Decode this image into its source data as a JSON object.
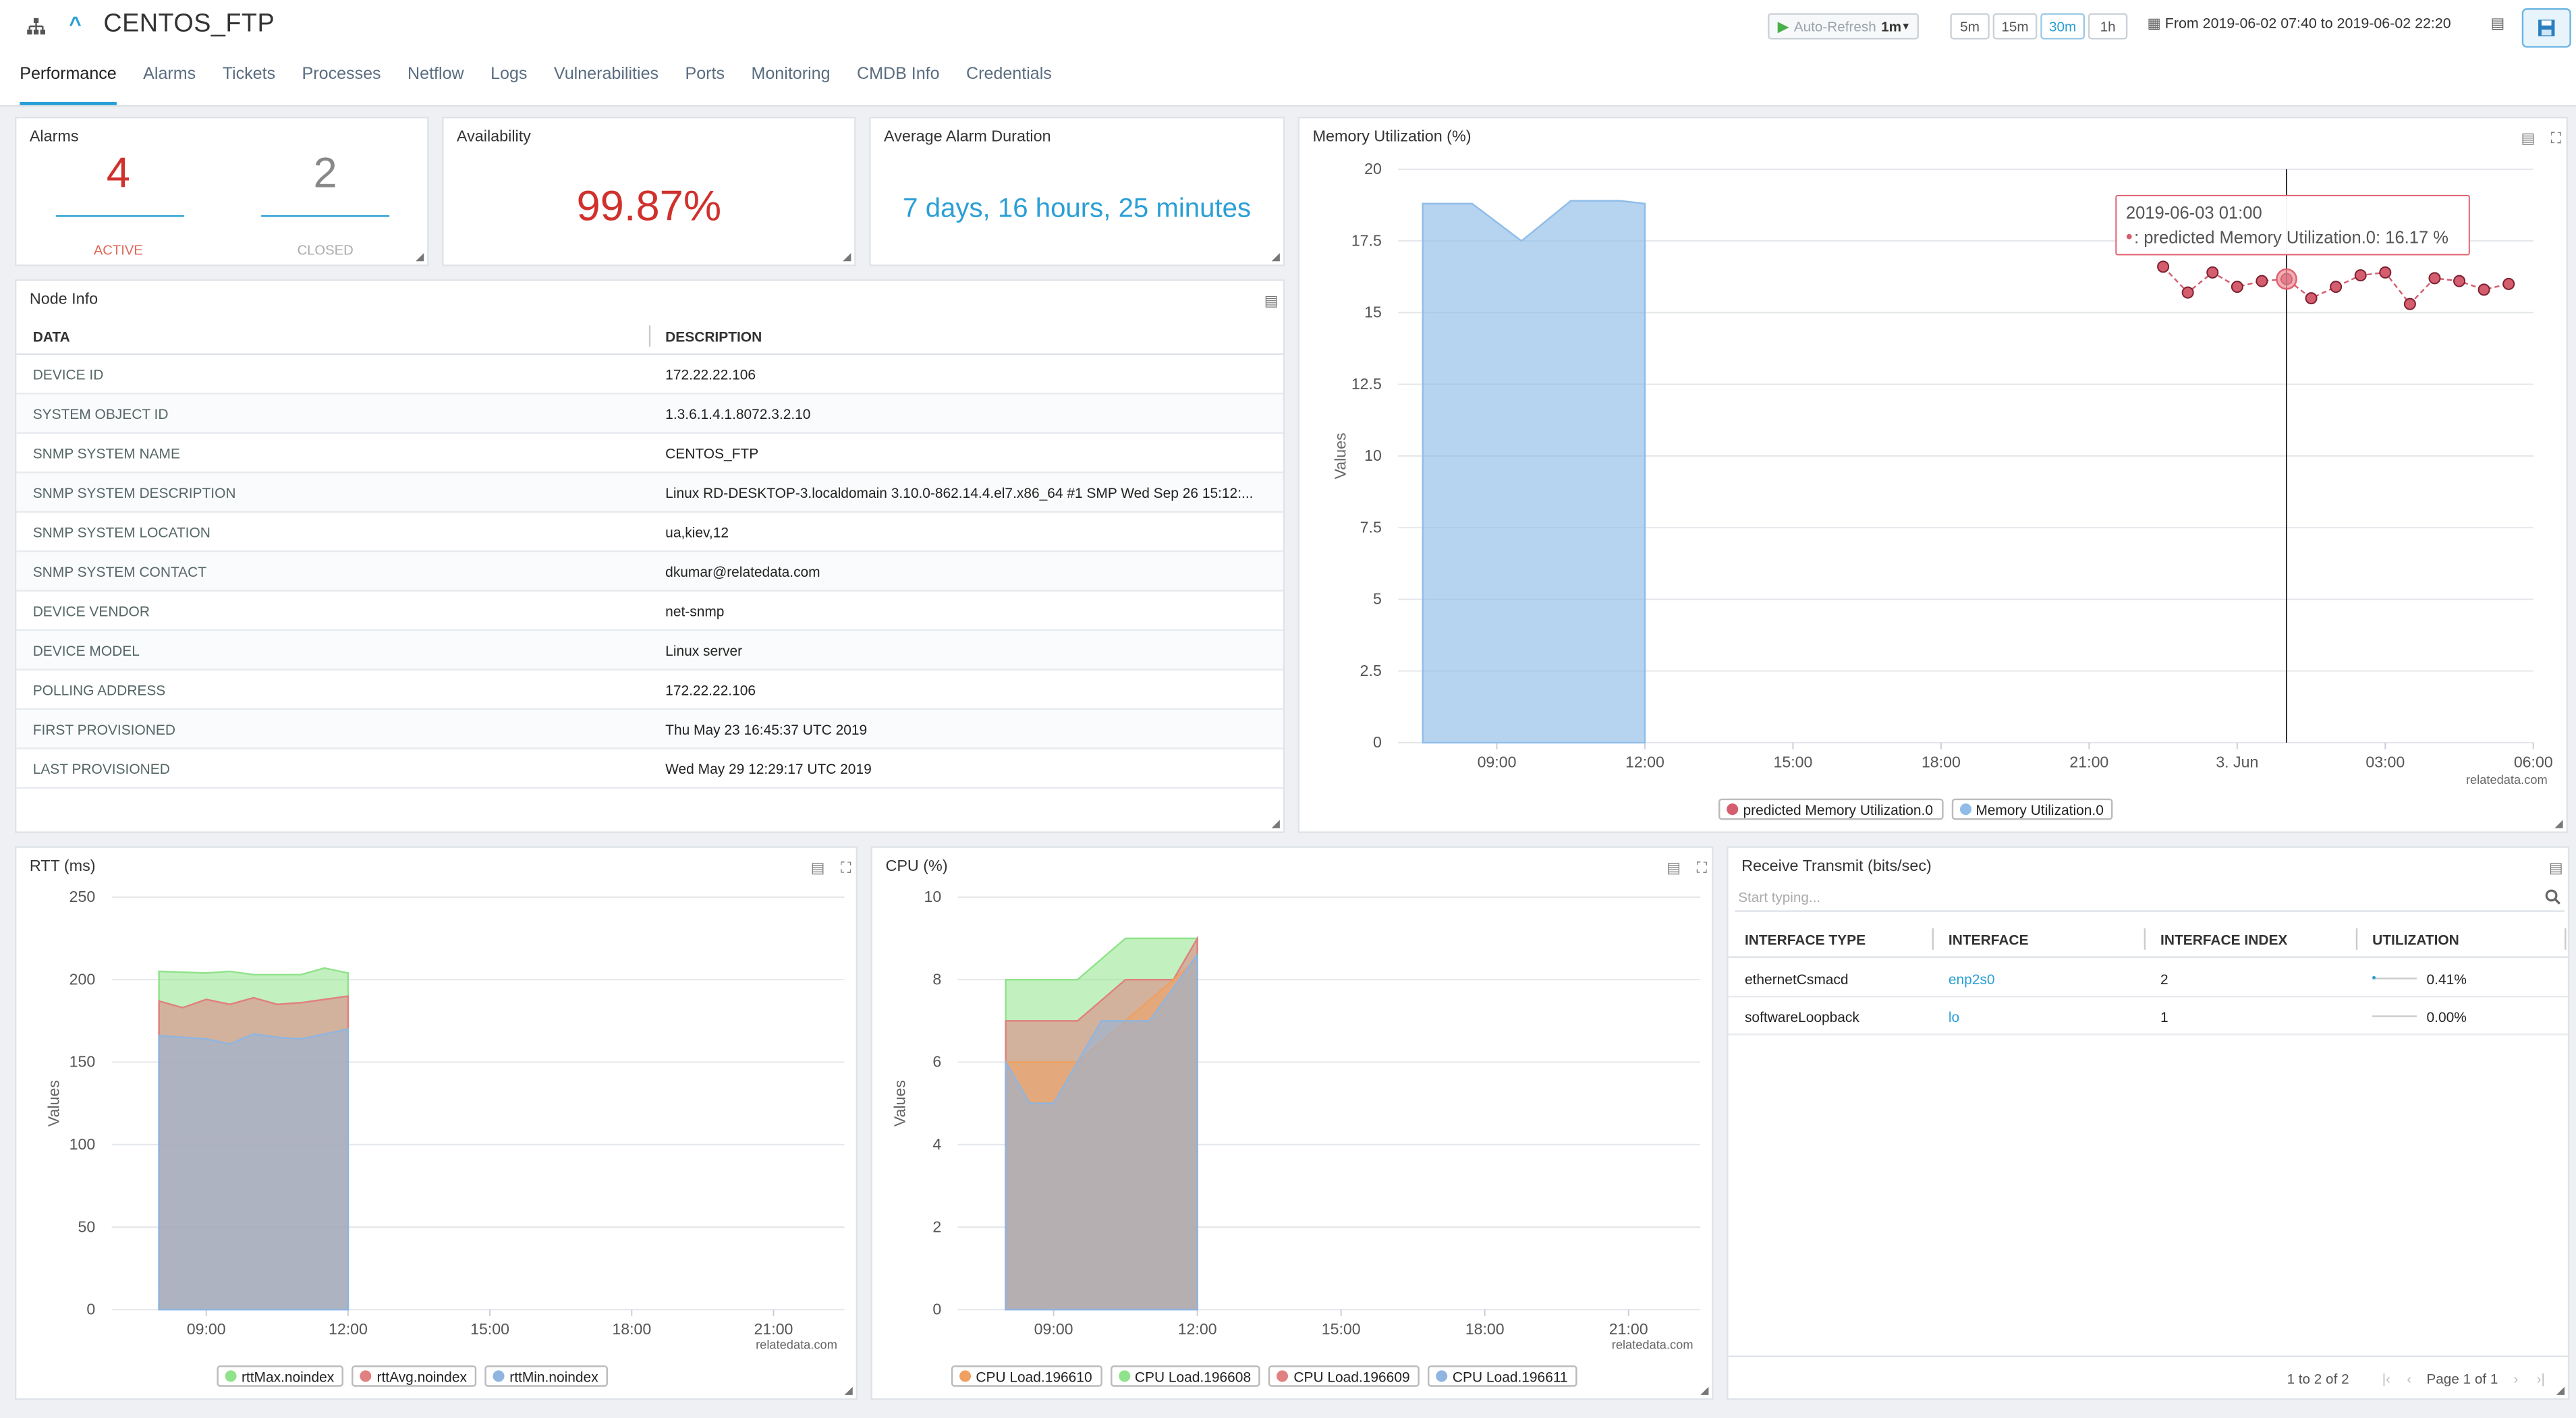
{
  "header": {
    "title": "CENTOS_FTP",
    "tabs": [
      "Performance",
      "Alarms",
      "Tickets",
      "Processes",
      "Netflow",
      "Logs",
      "Vulnerabilities",
      "Ports",
      "Monitoring",
      "CMDB Info",
      "Credentials"
    ],
    "active_tab": "Performance",
    "auto_refresh_label": "Auto-Refresh",
    "auto_refresh_value": "1m",
    "time_buttons": [
      "5m",
      "15m",
      "30m",
      "1h"
    ],
    "selected_time": "30m",
    "date_range": "From 2019-06-02 07:40 to 2019-06-02 22:20"
  },
  "alarms": {
    "title": "Alarms",
    "active_count": "4",
    "active_label": "ACTIVE",
    "closed_count": "2",
    "closed_label": "CLOSED"
  },
  "availability": {
    "title": "Availability",
    "value": "99.87%"
  },
  "avg_duration": {
    "title": "Average Alarm Duration",
    "value": "7 days, 16 hours, 25 minutes"
  },
  "node_info": {
    "title": "Node Info",
    "headers": [
      "DATA",
      "DESCRIPTION"
    ],
    "rows": [
      [
        "DEVICE ID",
        "172.22.22.106"
      ],
      [
        "SYSTEM OBJECT ID",
        "1.3.6.1.4.1.8072.3.2.10"
      ],
      [
        "SNMP SYSTEM NAME",
        "CENTOS_FTP"
      ],
      [
        "SNMP SYSTEM DESCRIPTION",
        "Linux RD-DESKTOP-3.localdomain 3.10.0-862.14.4.el7.x86_64 #1 SMP Wed Sep 26 15:12:..."
      ],
      [
        "SNMP SYSTEM LOCATION",
        "ua,kiev,12"
      ],
      [
        "SNMP SYSTEM CONTACT",
        "dkumar@relatedata.com"
      ],
      [
        "DEVICE VENDOR",
        "net-snmp"
      ],
      [
        "DEVICE MODEL",
        "Linux server"
      ],
      [
        "POLLING ADDRESS",
        "172.22.22.106"
      ],
      [
        "FIRST PROVISIONED",
        "Thu May 23 16:45:37 UTC 2019"
      ],
      [
        "LAST PROVISIONED",
        "Wed May 29 12:29:17 UTC 2019"
      ]
    ]
  },
  "chart_data": [
    {
      "id": "memory",
      "type": "area",
      "title": "Memory Utilization (%)",
      "ylabel": "Values",
      "ylim": [
        0,
        20
      ],
      "yticks": [
        "0",
        "2.5",
        "5",
        "7.5",
        "10",
        "12.5",
        "15",
        "17.5",
        "20"
      ],
      "xticks": [
        "09:00",
        "12:00",
        "15:00",
        "18:00",
        "21:00",
        "3. Jun",
        "03:00",
        "06:00"
      ],
      "xlim_hours": [
        7.0,
        30.0
      ],
      "series": [
        {
          "name": "Memory Utilization.0",
          "color": "#8fbde8",
          "kind": "area",
          "points": [
            [
              7.5,
              18.8
            ],
            [
              8.5,
              18.8
            ],
            [
              9.5,
              17.5
            ],
            [
              10.5,
              18.9
            ],
            [
              11.5,
              18.9
            ],
            [
              11.5,
              18.9
            ],
            [
              12.0,
              18.8
            ]
          ]
        },
        {
          "name": "predicted Memory Utilization.0",
          "color": "#d45d6e",
          "kind": "line-dots",
          "points": [
            [
              22.5,
              16.6
            ],
            [
              23.0,
              15.7
            ],
            [
              23.5,
              16.4
            ],
            [
              24.0,
              15.9
            ],
            [
              24.5,
              16.1
            ],
            [
              25.0,
              16.17
            ],
            [
              25.5,
              15.5
            ],
            [
              26.0,
              15.9
            ],
            [
              26.5,
              16.3
            ],
            [
              27.0,
              16.4
            ],
            [
              27.5,
              15.3
            ],
            [
              28.0,
              16.2
            ],
            [
              28.5,
              16.1
            ],
            [
              29.0,
              15.8
            ],
            [
              29.5,
              16.0
            ]
          ]
        }
      ],
      "tooltip": {
        "title": "2019-06-03 01:00",
        "text": ": predicted Memory Utilization.0: 16.17 %",
        "x_hours": 25.0
      },
      "credit": "relatedata.com"
    },
    {
      "id": "rtt",
      "type": "area",
      "title": "RTT (ms)",
      "ylabel": "Values",
      "ylim": [
        0,
        250
      ],
      "yticks": [
        "0",
        "50",
        "100",
        "150",
        "200",
        "250"
      ],
      "xticks": [
        "09:00",
        "12:00",
        "15:00",
        "18:00",
        "21:00"
      ],
      "xlim_hours": [
        7.0,
        22.5
      ],
      "series": [
        {
          "name": "rttMax.noindex",
          "color": "#90e38a",
          "points": [
            [
              8,
              205
            ],
            [
              9,
              204
            ],
            [
              9.5,
              205
            ],
            [
              10,
              203
            ],
            [
              11,
              203
            ],
            [
              11.5,
              207
            ],
            [
              12,
              204
            ]
          ]
        },
        {
          "name": "rttAvg.noindex",
          "color": "#e08080",
          "points": [
            [
              8,
              187
            ],
            [
              8.5,
              183
            ],
            [
              9,
              188
            ],
            [
              9.5,
              185
            ],
            [
              10,
              189
            ],
            [
              10.5,
              185
            ],
            [
              11,
              186
            ],
            [
              11.5,
              188
            ],
            [
              12,
              190
            ]
          ]
        },
        {
          "name": "rttMin.noindex",
          "color": "#8fb5e0",
          "points": [
            [
              8,
              166
            ],
            [
              9,
              164
            ],
            [
              9.5,
              161
            ],
            [
              10,
              167
            ],
            [
              10.5,
              165
            ],
            [
              11,
              164
            ],
            [
              11.5,
              167
            ],
            [
              12,
              170
            ]
          ]
        }
      ],
      "credit": "relatedata.com"
    },
    {
      "id": "cpu",
      "type": "area",
      "title": "CPU (%)",
      "ylabel": "Values",
      "ylim": [
        0,
        10
      ],
      "yticks": [
        "0",
        "2",
        "4",
        "6",
        "8",
        "10"
      ],
      "xticks": [
        "09:00",
        "12:00",
        "15:00",
        "18:00",
        "21:00"
      ],
      "xlim_hours": [
        7.0,
        22.5
      ],
      "series": [
        {
          "name": "CPU Load.196608",
          "color": "#90e38a",
          "points": [
            [
              8,
              8
            ],
            [
              9.5,
              8
            ],
            [
              10.5,
              9
            ],
            [
              12,
              9
            ]
          ]
        },
        {
          "name": "CPU Load.196609",
          "color": "#e08080",
          "points": [
            [
              8,
              7
            ],
            [
              9.5,
              7
            ],
            [
              10.5,
              8
            ],
            [
              11.5,
              8
            ],
            [
              12,
              9
            ]
          ]
        },
        {
          "name": "CPU Load.196610",
          "color": "#f0a060",
          "points": [
            [
              8,
              6
            ],
            [
              9.5,
              6
            ],
            [
              10.5,
              7
            ],
            [
              12,
              8.5
            ]
          ]
        },
        {
          "name": "CPU Load.196611",
          "color": "#8fb5e0",
          "points": [
            [
              8,
              6
            ],
            [
              8.5,
              5
            ],
            [
              9,
              5
            ],
            [
              10,
              7
            ],
            [
              11,
              7
            ],
            [
              12,
              8.6
            ]
          ]
        }
      ],
      "legend_order": [
        "CPU Load.196610",
        "CPU Load.196608",
        "CPU Load.196609",
        "CPU Load.196611"
      ],
      "credit": "relatedata.com"
    }
  ],
  "receive_transmit": {
    "title": "Receive Transmit (bits/sec)",
    "search_placeholder": "Start typing...",
    "headers": [
      "INTERFACE TYPE",
      "INTERFACE",
      "INTERFACE INDEX",
      "UTILIZATION"
    ],
    "rows": [
      {
        "type": "ethernetCsmacd",
        "interface": "enp2s0",
        "index": "2",
        "utilization": "0.41%"
      },
      {
        "type": "softwareLoopback",
        "interface": "lo",
        "index": "1",
        "utilization": "0.00%"
      }
    ],
    "record_count": "1 to 2 of 2",
    "page_label": "Page 1 of 1"
  }
}
